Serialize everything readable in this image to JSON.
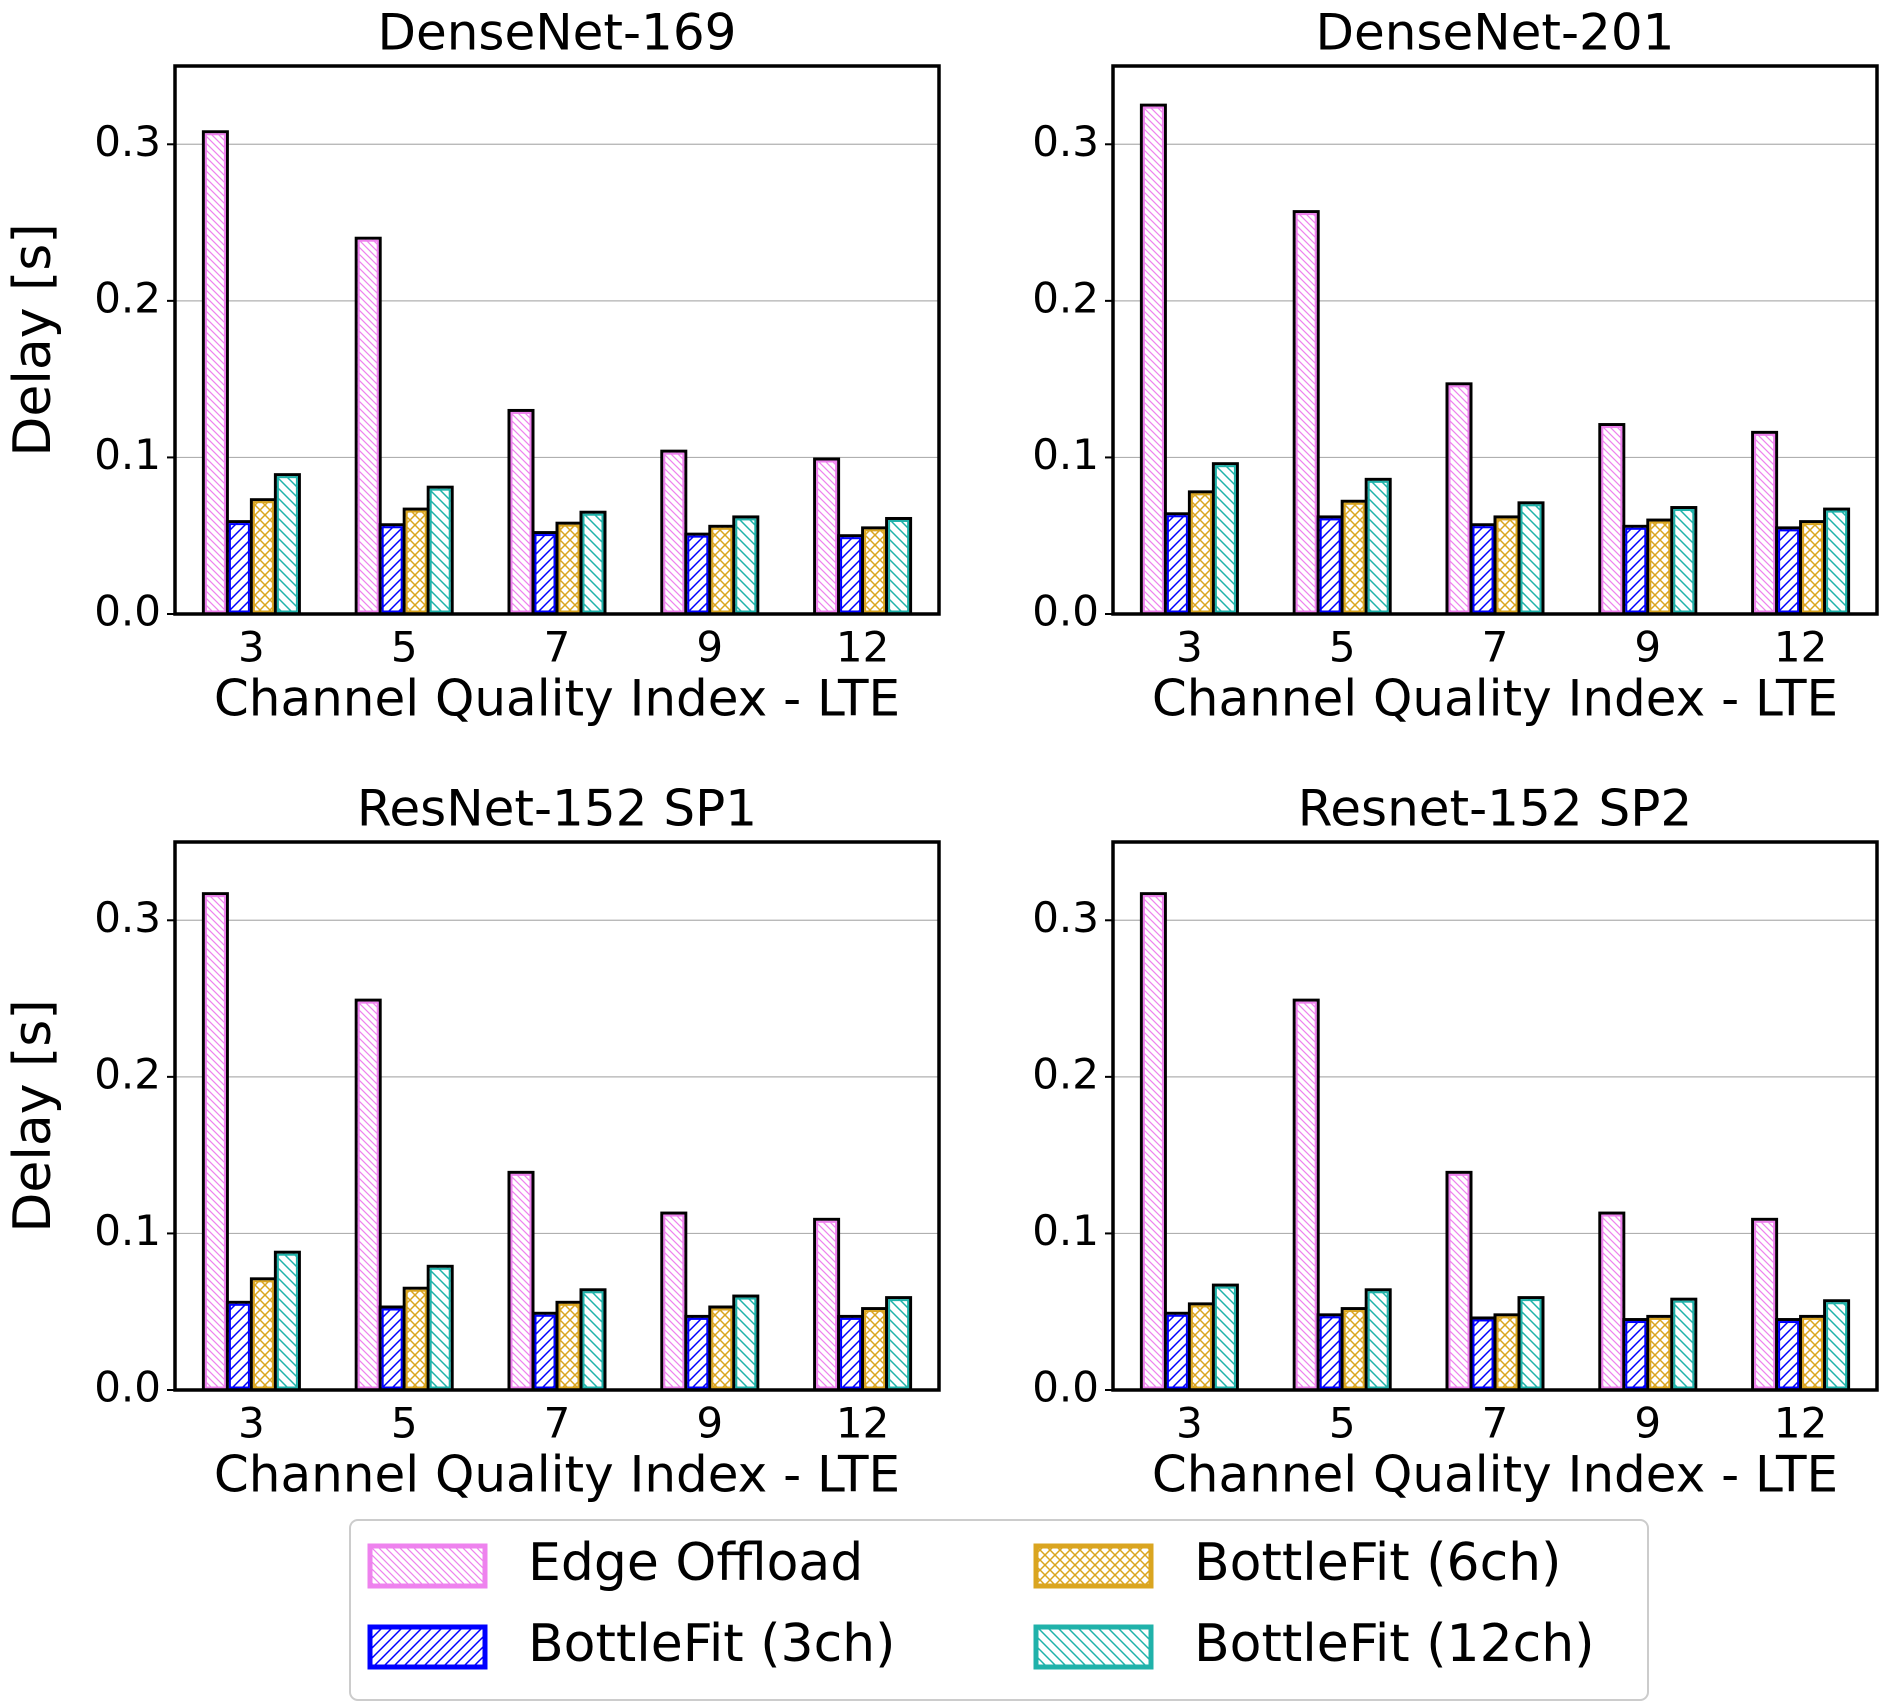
{
  "chart_data": [
    {
      "type": "bar",
      "title": "DenseNet-169",
      "x_label": "Channel Quality Index - LTE",
      "y_label": "Delay [s]",
      "categories": [
        "3",
        "5",
        "7",
        "9",
        "12"
      ],
      "ylim": [
        0,
        0.35
      ],
      "yticks": [
        {
          "value": 0,
          "label": "0.0"
        },
        0.1,
        0.2,
        0.3
      ],
      "grid": true,
      "series": [
        {
          "name": "Edge Offload",
          "color": "#ee82ee",
          "values": [
            0.308,
            0.24,
            0.13,
            0.104,
            0.099
          ]
        },
        {
          "name": "BottleFit (3ch)",
          "color": "#0000ff",
          "values": [
            0.059,
            0.057,
            0.052,
            0.051,
            0.05
          ]
        },
        {
          "name": "BottleFit (6ch)",
          "color": "#daa520",
          "values": [
            0.073,
            0.067,
            0.058,
            0.056,
            0.055
          ]
        },
        {
          "name": "BottleFit (12ch)",
          "color": "#20b2aa",
          "values": [
            0.089,
            0.081,
            0.065,
            0.062,
            0.061
          ]
        }
      ]
    },
    {
      "type": "bar",
      "title": "DenseNet-201",
      "x_label": "Channel Quality Index - LTE",
      "categories": [
        "3",
        "5",
        "7",
        "9",
        "12"
      ],
      "ylim": [
        0,
        0.35
      ],
      "yticks": [
        {
          "value": 0,
          "label": "0.0"
        },
        0.1,
        0.2,
        0.3
      ],
      "grid": true,
      "series": [
        {
          "name": "Edge Offload",
          "color": "#ee82ee",
          "values": [
            0.325,
            0.257,
            0.147,
            0.121,
            0.116
          ]
        },
        {
          "name": "BottleFit (3ch)",
          "color": "#0000ff",
          "values": [
            0.064,
            0.062,
            0.057,
            0.056,
            0.055
          ]
        },
        {
          "name": "BottleFit (6ch)",
          "color": "#daa520",
          "values": [
            0.078,
            0.072,
            0.062,
            0.06,
            0.059
          ]
        },
        {
          "name": "BottleFit (12ch)",
          "color": "#20b2aa",
          "values": [
            0.096,
            0.086,
            0.071,
            0.068,
            0.067
          ]
        }
      ]
    },
    {
      "type": "bar",
      "title": "ResNet-152 SP1",
      "x_label": "Channel Quality Index - LTE",
      "y_label": "Delay [s]",
      "categories": [
        "3",
        "5",
        "7",
        "9",
        "12"
      ],
      "ylim": [
        0,
        0.35
      ],
      "yticks": [
        {
          "value": 0,
          "label": "0.0"
        },
        0.1,
        0.2,
        0.3
      ],
      "grid": true,
      "series": [
        {
          "name": "Edge Offload",
          "color": "#ee82ee",
          "values": [
            0.317,
            0.249,
            0.139,
            0.113,
            0.109
          ]
        },
        {
          "name": "BottleFit (3ch)",
          "color": "#0000ff",
          "values": [
            0.056,
            0.053,
            0.049,
            0.047,
            0.047
          ]
        },
        {
          "name": "BottleFit (6ch)",
          "color": "#daa520",
          "values": [
            0.071,
            0.065,
            0.056,
            0.053,
            0.052
          ]
        },
        {
          "name": "BottleFit (12ch)",
          "color": "#20b2aa",
          "values": [
            0.088,
            0.079,
            0.064,
            0.06,
            0.059
          ]
        }
      ]
    },
    {
      "type": "bar",
      "title": "Resnet-152 SP2",
      "x_label": "Channel Quality Index - LTE",
      "categories": [
        "3",
        "5",
        "7",
        "9",
        "12"
      ],
      "ylim": [
        0,
        0.35
      ],
      "yticks": [
        {
          "value": 0,
          "label": "0.0"
        },
        0.1,
        0.2,
        0.3
      ],
      "grid": true,
      "series": [
        {
          "name": "Edge Offload",
          "color": "#ee82ee",
          "values": [
            0.317,
            0.249,
            0.139,
            0.113,
            0.109
          ]
        },
        {
          "name": "BottleFit (3ch)",
          "color": "#0000ff",
          "values": [
            0.049,
            0.048,
            0.046,
            0.045,
            0.045
          ]
        },
        {
          "name": "BottleFit (6ch)",
          "color": "#daa520",
          "values": [
            0.055,
            0.052,
            0.048,
            0.047,
            0.047
          ]
        },
        {
          "name": "BottleFit (12ch)",
          "color": "#20b2aa",
          "values": [
            0.067,
            0.064,
            0.059,
            0.058,
            0.057
          ]
        }
      ]
    }
  ]
}
